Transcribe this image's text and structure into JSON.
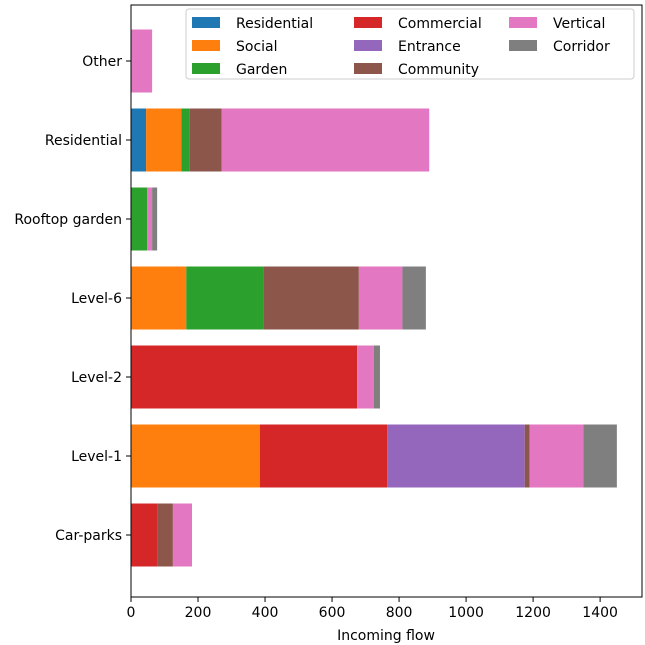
{
  "chart_data": {
    "type": "bar",
    "orientation": "horizontal",
    "stacked": true,
    "title": "",
    "xlabel": "Incoming flow",
    "ylabel": "",
    "xlim": [
      0,
      1525
    ],
    "xticks": [
      0,
      200,
      400,
      600,
      800,
      1000,
      1200,
      1400
    ],
    "grid": false,
    "legend_location": "top-right",
    "categories": [
      "Other",
      "Residential",
      "Rooftop garden",
      "Level-6",
      "Level-2",
      "Level-1",
      "Car-parks"
    ],
    "series": [
      {
        "name": "Residential",
        "color": "#1f77b4",
        "values": [
          0,
          45,
          0,
          0,
          0,
          0,
          0
        ]
      },
      {
        "name": "Social",
        "color": "#ff7f0e",
        "values": [
          0,
          105,
          0,
          165,
          0,
          385,
          0
        ]
      },
      {
        "name": "Garden",
        "color": "#2ca02c",
        "values": [
          0,
          25,
          48,
          230,
          0,
          0,
          0
        ]
      },
      {
        "name": "Commercial",
        "color": "#d62728",
        "values": [
          0,
          0,
          0,
          0,
          675,
          380,
          80
        ]
      },
      {
        "name": "Entrance",
        "color": "#9467bd",
        "values": [
          0,
          0,
          0,
          0,
          0,
          410,
          0
        ]
      },
      {
        "name": "Community",
        "color": "#8c564b",
        "values": [
          0,
          95,
          0,
          285,
          0,
          15,
          45
        ]
      },
      {
        "name": "Vertical",
        "color": "#e377c2",
        "values": [
          63,
          620,
          15,
          130,
          50,
          160,
          57
        ]
      },
      {
        "name": "Corridor",
        "color": "#7f7f7f",
        "values": [
          0,
          0,
          15,
          70,
          18,
          100,
          0
        ]
      }
    ]
  }
}
